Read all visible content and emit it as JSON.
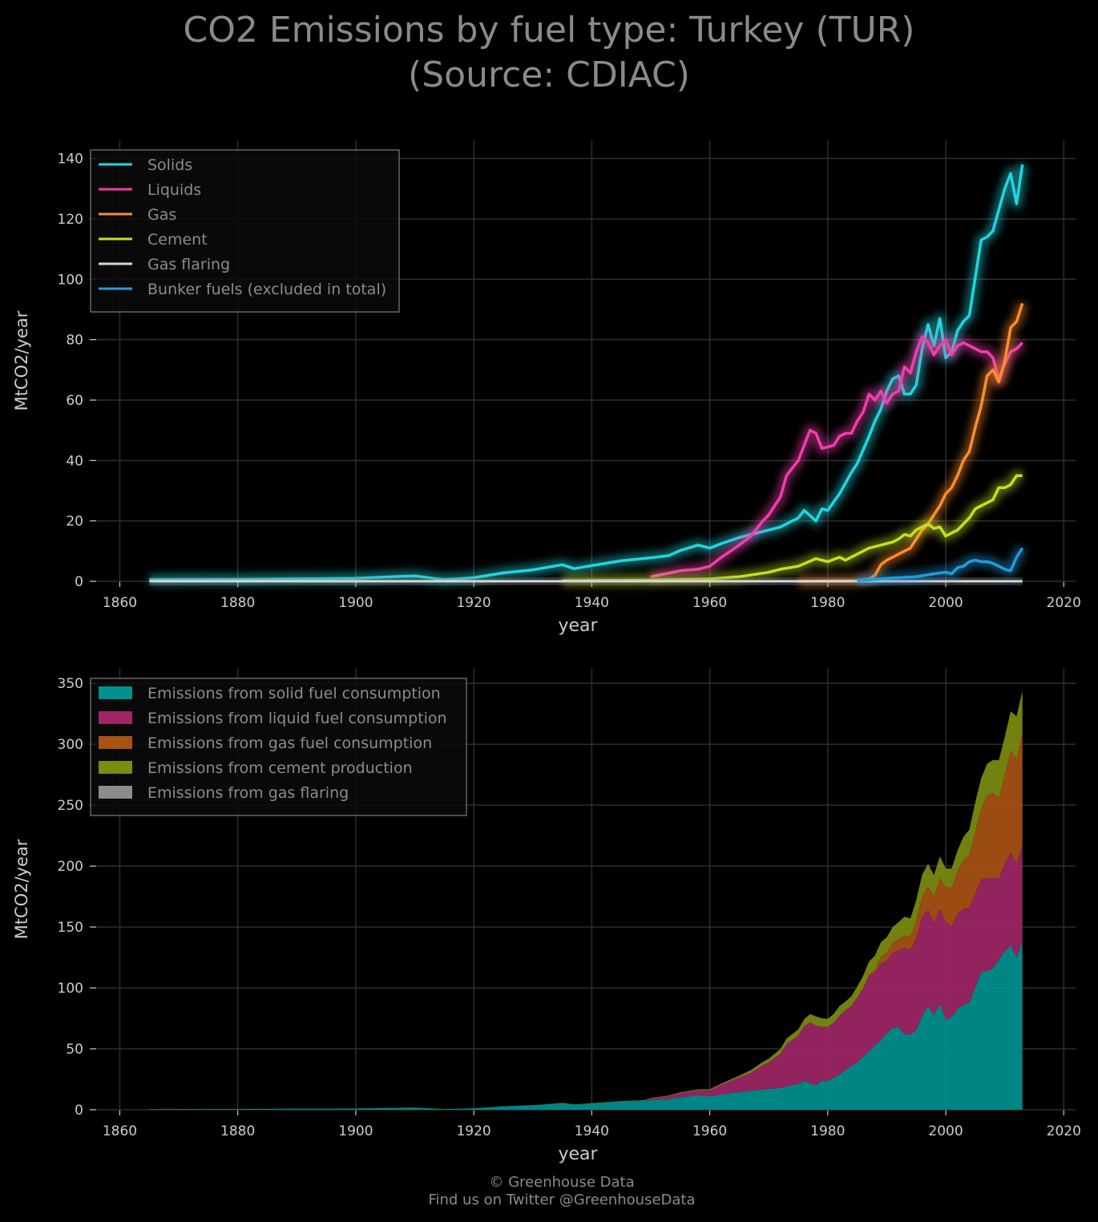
{
  "title_line1": "CO2 Emissions by fuel type: Turkey (TUR)",
  "title_line2": "(Source: CDIAC)",
  "footer_line1": "© Greenhouse Data",
  "footer_line2": "Find us on Twitter @GreenhouseData",
  "chart_data": [
    {
      "type": "line",
      "xlabel": "year",
      "ylabel": "MtCO2/year",
      "xlim": [
        1856,
        2022
      ],
      "ylim": [
        0,
        146
      ],
      "xticks": [
        1860,
        1880,
        1900,
        1920,
        1940,
        1960,
        1980,
        2000,
        2020
      ],
      "yticks": [
        0,
        20,
        40,
        60,
        80,
        100,
        120,
        140
      ],
      "grid": true,
      "legend_position": "top-left",
      "series": [
        {
          "name": "Solids",
          "color": "#1fd6e0",
          "points": [
            [
              1865,
              0.5
            ],
            [
              1880,
              0.6
            ],
            [
              1900,
              1.0
            ],
            [
              1910,
              1.8
            ],
            [
              1915,
              0.5
            ],
            [
              1920,
              1.2
            ],
            [
              1925,
              2.8
            ],
            [
              1930,
              3.8
            ],
            [
              1935,
              5.5
            ],
            [
              1937,
              4.2
            ],
            [
              1940,
              5.2
            ],
            [
              1945,
              6.8
            ],
            [
              1950,
              7.8
            ],
            [
              1953,
              8.5
            ],
            [
              1955,
              10.2
            ],
            [
              1958,
              12
            ],
            [
              1960,
              11
            ],
            [
              1962,
              12.5
            ],
            [
              1965,
              14.5
            ],
            [
              1967,
              15.5
            ],
            [
              1970,
              17
            ],
            [
              1972,
              18
            ],
            [
              1975,
              21
            ],
            [
              1976,
              23.5
            ],
            [
              1978,
              20
            ],
            [
              1979,
              24
            ],
            [
              1980,
              23.5
            ],
            [
              1982,
              29
            ],
            [
              1984,
              36
            ],
            [
              1985,
              39
            ],
            [
              1987,
              48
            ],
            [
              1988,
              53
            ],
            [
              1989,
              57
            ],
            [
              1990,
              63
            ],
            [
              1991,
              67
            ],
            [
              1992,
              68
            ],
            [
              1993,
              62
            ],
            [
              1994,
              62
            ],
            [
              1995,
              65
            ],
            [
              1996,
              77
            ],
            [
              1997,
              85
            ],
            [
              1998,
              78
            ],
            [
              1999,
              87
            ],
            [
              2000,
              74
            ],
            [
              2001,
              76
            ],
            [
              2002,
              83
            ],
            [
              2003,
              86
            ],
            [
              2004,
              88
            ],
            [
              2006,
              113
            ],
            [
              2007,
              114
            ],
            [
              2008,
              116
            ],
            [
              2009,
              123
            ],
            [
              2010,
              130
            ],
            [
              2011,
              135
            ],
            [
              2012,
              125
            ],
            [
              2013,
              138
            ]
          ]
        },
        {
          "name": "Liquids",
          "color": "#f23dab",
          "points": [
            [
              1950,
              1.5
            ],
            [
              1955,
              3.5
            ],
            [
              1958,
              4
            ],
            [
              1960,
              5
            ],
            [
              1962,
              8
            ],
            [
              1965,
              12
            ],
            [
              1967,
              15
            ],
            [
              1969,
              20
            ],
            [
              1970,
              22
            ],
            [
              1972,
              28
            ],
            [
              1973,
              35
            ],
            [
              1975,
              40
            ],
            [
              1977,
              50
            ],
            [
              1978,
              49
            ],
            [
              1979,
              44
            ],
            [
              1981,
              45
            ],
            [
              1982,
              48
            ],
            [
              1983,
              49
            ],
            [
              1984,
              49
            ],
            [
              1985,
              53
            ],
            [
              1986,
              56
            ],
            [
              1987,
              62
            ],
            [
              1988,
              60
            ],
            [
              1989,
              63
            ],
            [
              1990,
              59
            ],
            [
              1991,
              62
            ],
            [
              1992,
              63
            ],
            [
              1993,
              71
            ],
            [
              1994,
              69
            ],
            [
              1995,
              76
            ],
            [
              1996,
              81
            ],
            [
              1997,
              79
            ],
            [
              1998,
              75
            ],
            [
              1999,
              78
            ],
            [
              2000,
              80
            ],
            [
              2001,
              75
            ],
            [
              2002,
              78
            ],
            [
              2003,
              79
            ],
            [
              2004,
              78
            ],
            [
              2005,
              77
            ],
            [
              2006,
              76
            ],
            [
              2007,
              76
            ],
            [
              2008,
              74
            ],
            [
              2009,
              67
            ],
            [
              2010,
              72
            ],
            [
              2011,
              76
            ],
            [
              2012,
              77
            ],
            [
              2013,
              79
            ]
          ]
        },
        {
          "name": "Gas",
          "color": "#ff8c2e",
          "points": [
            [
              1975,
              0
            ],
            [
              1985,
              0.2
            ],
            [
              1987,
              0.7
            ],
            [
              1988,
              2
            ],
            [
              1989,
              5.5
            ],
            [
              1990,
              7
            ],
            [
              1991,
              8
            ],
            [
              1992,
              9
            ],
            [
              1993,
              10
            ],
            [
              1994,
              11
            ],
            [
              1995,
              14
            ],
            [
              1996,
              17
            ],
            [
              1997,
              19
            ],
            [
              1998,
              22
            ],
            [
              1999,
              25
            ],
            [
              2000,
              29
            ],
            [
              2001,
              31
            ],
            [
              2002,
              35
            ],
            [
              2003,
              40
            ],
            [
              2004,
              43
            ],
            [
              2005,
              51
            ],
            [
              2006,
              58
            ],
            [
              2007,
              68
            ],
            [
              2008,
              70
            ],
            [
              2009,
              66
            ],
            [
              2010,
              73
            ],
            [
              2011,
              84
            ],
            [
              2012,
              86
            ],
            [
              2013,
              92
            ]
          ]
        },
        {
          "name": "Cement",
          "color": "#c4e01e",
          "points": [
            [
              1935,
              0.2
            ],
            [
              1950,
              0.4
            ],
            [
              1960,
              0.8
            ],
            [
              1965,
              1.5
            ],
            [
              1970,
              3
            ],
            [
              1972,
              4
            ],
            [
              1975,
              5
            ],
            [
              1978,
              7.5
            ],
            [
              1980,
              6.5
            ],
            [
              1982,
              8
            ],
            [
              1983,
              7
            ],
            [
              1985,
              9
            ],
            [
              1987,
              11
            ],
            [
              1989,
              12
            ],
            [
              1991,
              13
            ],
            [
              1992,
              14
            ],
            [
              1993,
              15.5
            ],
            [
              1994,
              15
            ],
            [
              1995,
              17
            ],
            [
              1997,
              19
            ],
            [
              1998,
              17.5
            ],
            [
              1999,
              18
            ],
            [
              2000,
              15
            ],
            [
              2001,
              16
            ],
            [
              2002,
              17
            ],
            [
              2003,
              19
            ],
            [
              2004,
              21
            ],
            [
              2005,
              24
            ],
            [
              2006,
              25
            ],
            [
              2007,
              26
            ],
            [
              2008,
              27
            ],
            [
              2009,
              31
            ],
            [
              2010,
              31
            ],
            [
              2011,
              32
            ],
            [
              2012,
              35
            ],
            [
              2013,
              35
            ]
          ]
        },
        {
          "name": "Gas flaring",
          "color": "#d6d6d6",
          "points": [
            [
              1865,
              0.02
            ],
            [
              2013,
              0.02
            ]
          ]
        },
        {
          "name": "Bunker fuels (excluded in total)",
          "color": "#1f9cde",
          "points": [
            [
              1985,
              0.2
            ],
            [
              1988,
              0.6
            ],
            [
              1990,
              1
            ],
            [
              1995,
              1.5
            ],
            [
              1998,
              2.5
            ],
            [
              2000,
              3
            ],
            [
              2001,
              2.5
            ],
            [
              2002,
              4.5
            ],
            [
              2003,
              5
            ],
            [
              2004,
              6.5
            ],
            [
              2005,
              7
            ],
            [
              2006,
              6.5
            ],
            [
              2007,
              6.5
            ],
            [
              2008,
              6
            ],
            [
              2009,
              5
            ],
            [
              2010,
              4
            ],
            [
              2011,
              3.5
            ],
            [
              2012,
              8
            ],
            [
              2013,
              11
            ]
          ]
        }
      ]
    },
    {
      "type": "area",
      "stacked": true,
      "xlabel": "year",
      "ylabel": "MtCO2/year",
      "xlim": [
        1856,
        2022
      ],
      "ylim": [
        0,
        362
      ],
      "xticks": [
        1860,
        1880,
        1900,
        1920,
        1940,
        1960,
        1980,
        2000,
        2020
      ],
      "yticks": [
        0,
        50,
        100,
        150,
        200,
        250,
        300,
        350
      ],
      "grid": true,
      "legend_position": "top-left",
      "series": [
        {
          "name": "Emissions from solid fuel consumption",
          "color": "#009090"
        },
        {
          "name": "Emissions from liquid fuel consumption",
          "color": "#9e2666"
        },
        {
          "name": "Emissions from gas fuel consumption",
          "color": "#a85313"
        },
        {
          "name": "Emissions from cement production",
          "color": "#7c8c10"
        },
        {
          "name": "Emissions from gas flaring",
          "color": "#8c8c8c"
        }
      ]
    }
  ]
}
